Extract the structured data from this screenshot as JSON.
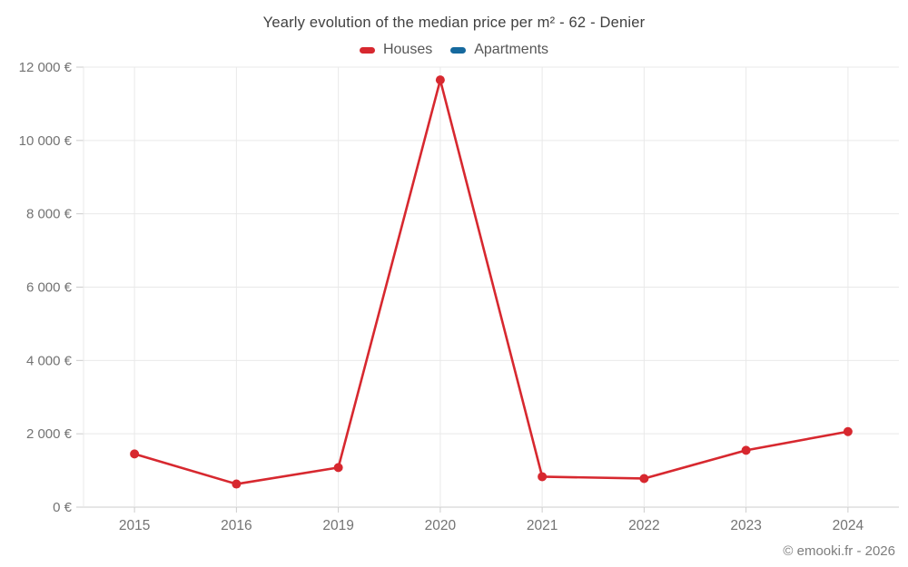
{
  "footer": {
    "credit": "© emooki.fr - 2026"
  },
  "style": {
    "background": "#ffffff",
    "grid_color": "#e9e9e9",
    "axis_color": "#cccccc",
    "tick_color": "#cccccc",
    "label_color": "#737373",
    "title_color": "#404040",
    "legend_text_color": "#565656",
    "footer_color": "#7d7d7d"
  },
  "chart_data": {
    "type": "line",
    "title": "Yearly evolution of the median price per m² - 62 - Denier",
    "categories": [
      "2015",
      "2016",
      "2019",
      "2020",
      "2021",
      "2022",
      "2023",
      "2024"
    ],
    "series": [
      {
        "name": "Houses",
        "color": "#d7282f",
        "values": [
          1450,
          630,
          1080,
          11650,
          830,
          780,
          1550,
          2060
        ]
      },
      {
        "name": "Apartments",
        "color": "#16699e",
        "values": []
      }
    ],
    "xlabel": "",
    "ylabel": "",
    "ylim": [
      0,
      12000
    ],
    "y_ticks": [
      {
        "value": 0,
        "label": "0 €"
      },
      {
        "value": 2000,
        "label": "2 000 €"
      },
      {
        "value": 4000,
        "label": "4 000 €"
      },
      {
        "value": 6000,
        "label": "6 000 €"
      },
      {
        "value": 8000,
        "label": "8 000 €"
      },
      {
        "value": 10000,
        "label": "10 000 €"
      },
      {
        "value": 12000,
        "label": "12 000 €"
      }
    ],
    "grid": true,
    "legend_position": "top",
    "marker_radius": 5,
    "line_width": 2.6
  }
}
